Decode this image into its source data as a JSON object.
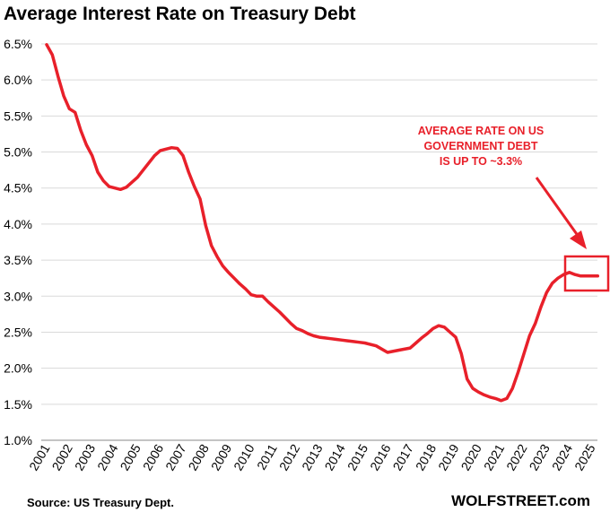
{
  "chart_data": {
    "type": "line",
    "title": "Average Interest Rate on Treasury Debt",
    "xlabel": "",
    "ylabel": "",
    "ylim": [
      1.0,
      6.5
    ],
    "yticks": [
      "1.0%",
      "1.5%",
      "2.0%",
      "2.5%",
      "3.0%",
      "3.5%",
      "4.0%",
      "4.5%",
      "5.0%",
      "5.5%",
      "6.0%",
      "6.5%"
    ],
    "xticks": [
      "2001",
      "2002",
      "2003",
      "2004",
      "2005",
      "2006",
      "2007",
      "2008",
      "2009",
      "2010",
      "2011",
      "2012",
      "2013",
      "2014",
      "2015",
      "2016",
      "2017",
      "2018",
      "2019",
      "2020",
      "2021",
      "2022",
      "2023",
      "2024",
      "2025"
    ],
    "grid": true,
    "series": [
      {
        "name": "Average interest rate",
        "color": "#e8202a",
        "x": [
          2001.0,
          2001.25,
          2001.5,
          2001.75,
          2002.0,
          2002.25,
          2002.5,
          2002.75,
          2003.0,
          2003.25,
          2003.5,
          2003.75,
          2004.0,
          2004.25,
          2004.5,
          2004.75,
          2005.0,
          2005.25,
          2005.5,
          2005.75,
          2006.0,
          2006.25,
          2006.5,
          2006.75,
          2007.0,
          2007.25,
          2007.5,
          2007.75,
          2008.0,
          2008.25,
          2008.5,
          2008.75,
          2009.0,
          2009.25,
          2009.5,
          2009.75,
          2010.0,
          2010.25,
          2010.5,
          2010.75,
          2011.0,
          2011.25,
          2011.5,
          2011.75,
          2012.0,
          2012.25,
          2012.5,
          2012.75,
          2013.0,
          2013.25,
          2013.5,
          2013.75,
          2014.0,
          2014.25,
          2014.5,
          2014.75,
          2015.0,
          2015.5,
          2016.0,
          2016.5,
          2017.0,
          2017.25,
          2017.5,
          2017.75,
          2018.0,
          2018.25,
          2018.5,
          2018.75,
          2019.0,
          2019.25,
          2019.5,
          2019.75,
          2020.0,
          2020.25,
          2020.5,
          2020.75,
          2021.0,
          2021.25,
          2021.5,
          2021.75,
          2022.0,
          2022.25,
          2022.5,
          2022.75,
          2023.0,
          2023.25,
          2023.5,
          2023.75,
          2024.0,
          2024.25,
          2024.5,
          2024.75,
          2025.0,
          2025.25
        ],
        "values": [
          6.49,
          6.35,
          6.05,
          5.78,
          5.6,
          5.55,
          5.3,
          5.1,
          4.95,
          4.72,
          4.6,
          4.52,
          4.5,
          4.48,
          4.51,
          4.58,
          4.65,
          4.75,
          4.85,
          4.95,
          5.02,
          5.04,
          5.06,
          5.05,
          4.95,
          4.72,
          4.52,
          4.35,
          3.98,
          3.7,
          3.55,
          3.42,
          3.33,
          3.25,
          3.17,
          3.1,
          3.02,
          3.0,
          3.0,
          2.92,
          2.85,
          2.78,
          2.7,
          2.62,
          2.55,
          2.52,
          2.48,
          2.45,
          2.43,
          2.42,
          2.41,
          2.4,
          2.39,
          2.38,
          2.37,
          2.36,
          2.35,
          2.31,
          2.22,
          2.25,
          2.28,
          2.35,
          2.42,
          2.48,
          2.55,
          2.59,
          2.57,
          2.5,
          2.43,
          2.2,
          1.85,
          1.72,
          1.67,
          1.63,
          1.6,
          1.58,
          1.55,
          1.58,
          1.72,
          1.95,
          2.2,
          2.45,
          2.62,
          2.85,
          3.05,
          3.18,
          3.25,
          3.3,
          3.33,
          3.3,
          3.28,
          3.28,
          3.28,
          3.28
        ]
      }
    ],
    "annotation": {
      "lines": [
        "AVERAGE RATE ON US",
        "GOVERNMENT DEBT",
        "IS UP TO ~3.3%"
      ],
      "color": "#e8202a"
    },
    "source": "Source: US Treasury Dept.",
    "brand": "WOLFSTREET.com"
  }
}
